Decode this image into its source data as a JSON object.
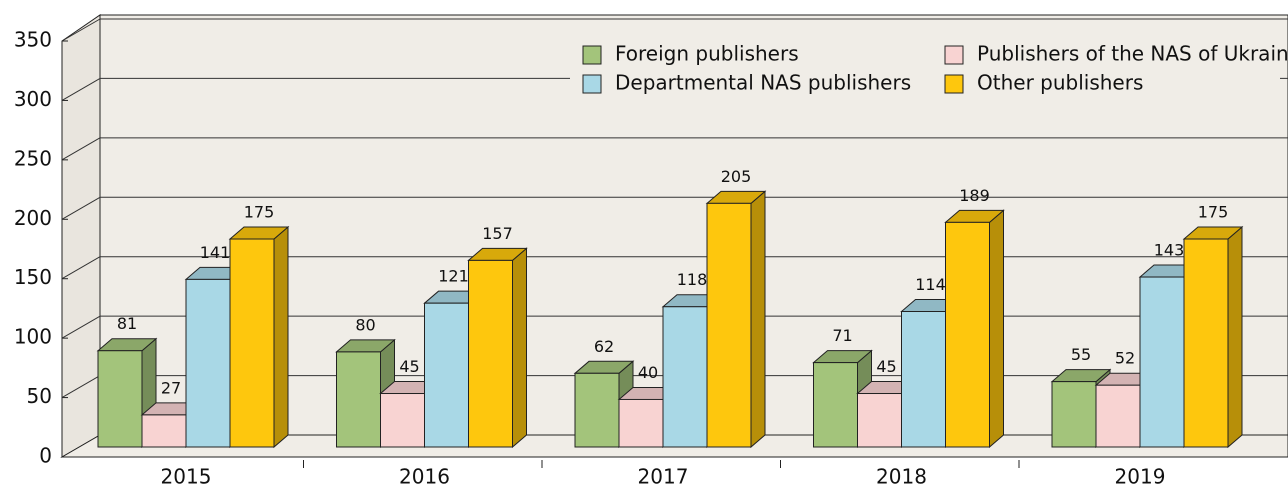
{
  "chart_data": {
    "type": "bar3d",
    "categories": [
      "2015",
      "2016",
      "2017",
      "2018",
      "2019"
    ],
    "series": [
      {
        "name": "Foreign publishers",
        "color": "#a3c47b",
        "values": [
          81,
          80,
          62,
          71,
          55
        ]
      },
      {
        "name": "Publishers of the NAS of Ukraine",
        "color": "#f8d3d2",
        "values": [
          27,
          45,
          40,
          45,
          52
        ]
      },
      {
        "name": "Departmental NAS publishers",
        "color": "#a9d8e6",
        "values": [
          141,
          121,
          118,
          114,
          143
        ]
      },
      {
        "name": "Other publishers",
        "color": "#fec70d",
        "values": [
          175,
          157,
          205,
          189,
          175
        ]
      }
    ],
    "ylim": [
      0,
      350
    ],
    "yticks": [
      0,
      50,
      100,
      150,
      200,
      250,
      300,
      350
    ],
    "grid": true
  }
}
